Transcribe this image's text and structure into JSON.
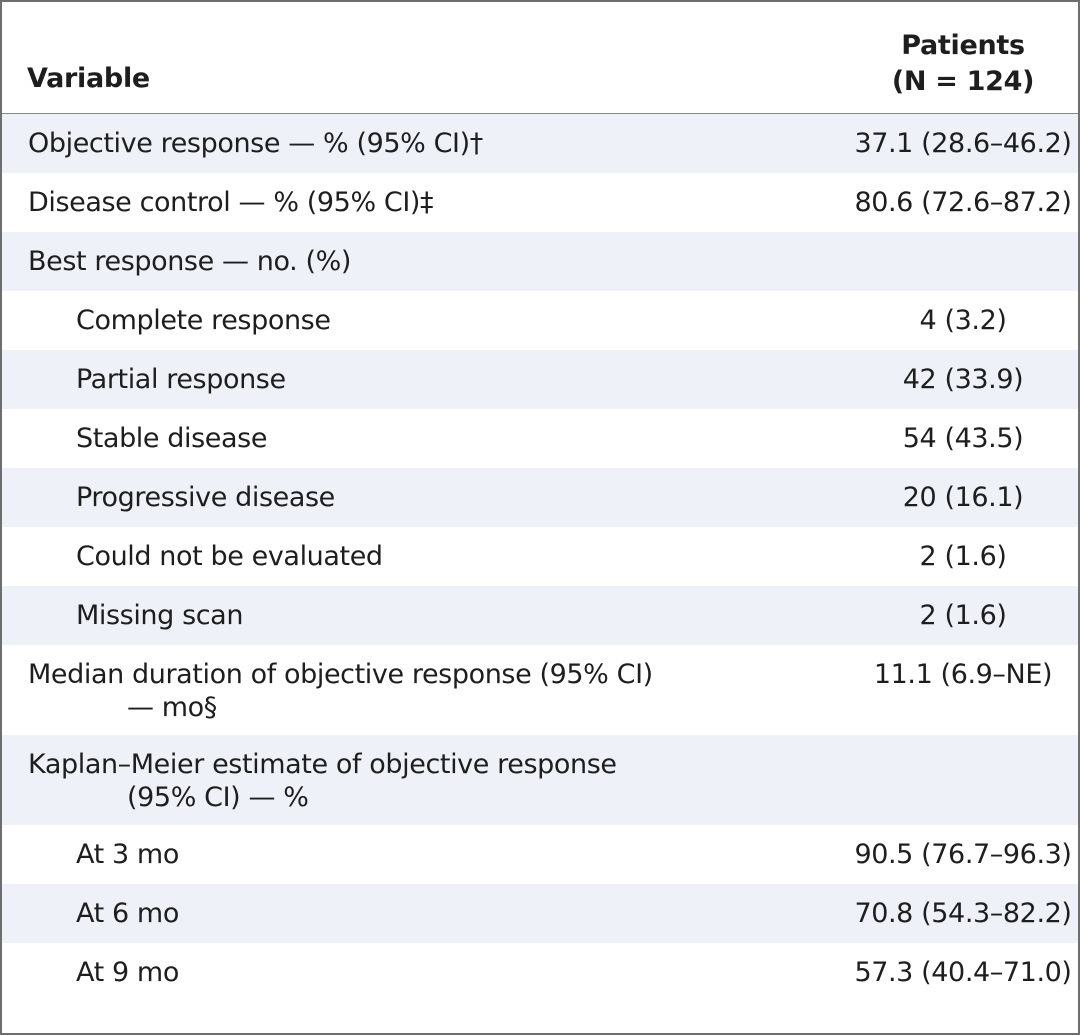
{
  "table": {
    "header": {
      "variable": "Variable",
      "patients_line1": "Patients",
      "patients_line2": "(N = 124)"
    },
    "rows": [
      {
        "label": "Objective response — % (95% CI)†",
        "value": "37.1 (28.6–46.2)"
      },
      {
        "label": "Disease control — % (95% CI)‡",
        "value": "80.6 (72.6–87.2)"
      },
      {
        "label": "Best response — no. (%)",
        "value": ""
      },
      {
        "label": "Complete response",
        "value": "4 (3.2)"
      },
      {
        "label": "Partial response",
        "value": "42 (33.9)"
      },
      {
        "label": "Stable disease",
        "value": "54 (43.5)"
      },
      {
        "label": "Progressive disease",
        "value": "20 (16.1)"
      },
      {
        "label": "Could not be evaluated",
        "value": "2 (1.6)"
      },
      {
        "label": "Missing scan",
        "value": "2 (1.6)"
      },
      {
        "label": "Median duration of objective response (95% CI)",
        "label_cont": "— mo§",
        "value": "11.1 (6.9–NE)"
      },
      {
        "label": "Kaplan–Meier estimate of objective response",
        "label_cont": "(95% CI) — %",
        "value": ""
      },
      {
        "label": "At 3 mo",
        "value": "90.5 (76.7–96.3)"
      },
      {
        "label": "At 6 mo",
        "value": "70.8 (54.3–82.2)"
      },
      {
        "label": "At 9 mo",
        "value": "57.3 (40.4–71.0)"
      }
    ]
  }
}
